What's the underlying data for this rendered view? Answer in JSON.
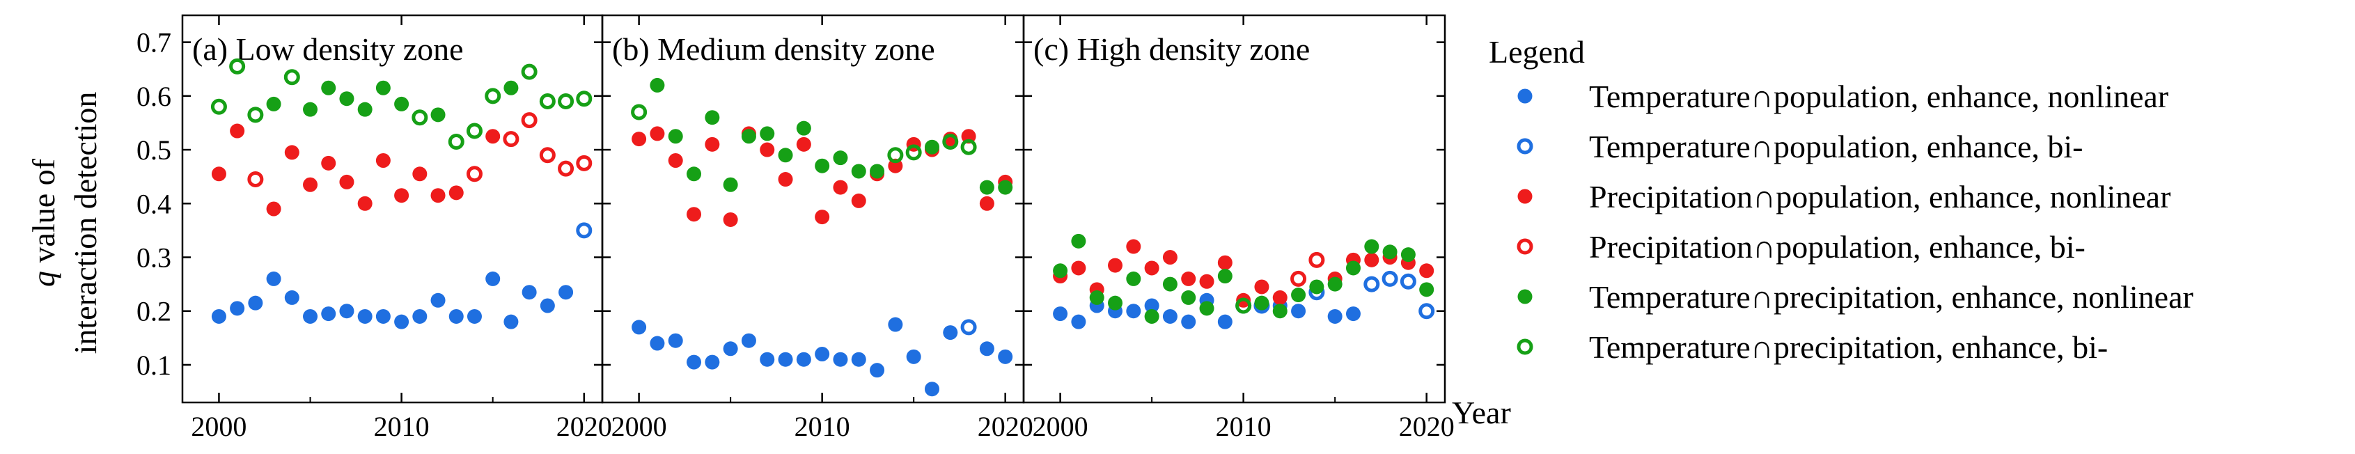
{
  "colors": {
    "blue": "#1f6fe0",
    "red": "#ee1c1c",
    "green": "#16a016",
    "axis": "#000000"
  },
  "y_axis_title_line1": "q value of",
  "y_axis_title_line1_italic": "q",
  "y_axis_title_line1_rest": " value of",
  "y_axis_title_line2": "interaction detection",
  "x_axis_title": "Year",
  "legend": {
    "title": "Legend",
    "entries": [
      {
        "label": "Temperature∩population, enhance, nonlinear",
        "color": "blue",
        "marker": "filled"
      },
      {
        "label": "Temperature∩population, enhance, bi-",
        "color": "blue",
        "marker": "open"
      },
      {
        "label": "Precipitation∩population, enhance, nonlinear",
        "color": "red",
        "marker": "filled"
      },
      {
        "label": "Precipitation∩population, enhance, bi-",
        "color": "red",
        "marker": "open"
      },
      {
        "label": "Temperature∩precipitation, enhance, nonlinear",
        "color": "green",
        "marker": "filled"
      },
      {
        "label": "Temperature∩precipitation, enhance, bi-",
        "color": "green",
        "marker": "open"
      }
    ]
  },
  "chart_data": [
    {
      "type": "scatter",
      "title": "(a) Low density zone",
      "xlabel": "Year",
      "ylabel": "q value of interaction detection",
      "xlim": [
        1998,
        2021
      ],
      "ylim": [
        0.03,
        0.75
      ],
      "xticks": [
        2000,
        2010,
        2020
      ],
      "yticks": [
        0.1,
        0.2,
        0.3,
        0.4,
        0.5,
        0.6,
        0.7
      ],
      "x": [
        2000,
        2001,
        2002,
        2003,
        2004,
        2005,
        2006,
        2007,
        2008,
        2009,
        2010,
        2011,
        2012,
        2013,
        2014,
        2015,
        2016,
        2017,
        2018,
        2019,
        2020
      ],
      "series": [
        {
          "name": "Temperature∩population",
          "color": "blue",
          "values": [
            0.19,
            0.205,
            0.215,
            0.26,
            0.225,
            0.19,
            0.195,
            0.2,
            0.19,
            0.19,
            0.18,
            0.19,
            0.22,
            0.19,
            0.19,
            0.26,
            0.18,
            0.235,
            0.21,
            0.235,
            0.35
          ],
          "open": [
            false,
            false,
            false,
            false,
            false,
            false,
            false,
            false,
            false,
            false,
            false,
            false,
            false,
            false,
            false,
            false,
            false,
            false,
            false,
            false,
            true
          ]
        },
        {
          "name": "Precipitation∩population",
          "color": "red",
          "values": [
            0.455,
            0.535,
            0.445,
            0.39,
            0.495,
            0.435,
            0.475,
            0.44,
            0.4,
            0.48,
            0.415,
            0.455,
            0.415,
            0.42,
            0.455,
            0.525,
            0.52,
            0.555,
            0.49,
            0.465,
            0.475
          ],
          "open": [
            false,
            false,
            true,
            false,
            false,
            false,
            false,
            false,
            false,
            false,
            false,
            false,
            false,
            false,
            true,
            false,
            true,
            true,
            true,
            true,
            true
          ]
        },
        {
          "name": "Temperature∩precipitation",
          "color": "green",
          "values": [
            0.58,
            0.655,
            0.565,
            0.585,
            0.635,
            0.575,
            0.615,
            0.595,
            0.575,
            0.615,
            0.585,
            0.56,
            0.565,
            0.515,
            0.535,
            0.6,
            0.615,
            0.645,
            0.59,
            0.59,
            0.595
          ],
          "open": [
            true,
            true,
            true,
            false,
            true,
            false,
            false,
            false,
            false,
            false,
            false,
            true,
            false,
            true,
            true,
            true,
            false,
            true,
            true,
            true,
            true
          ]
        }
      ]
    },
    {
      "type": "scatter",
      "title": "(b) Medium density zone",
      "xlabel": "Year",
      "ylabel": "",
      "xlim": [
        1998,
        2021
      ],
      "ylim": [
        0.03,
        0.75
      ],
      "xticks": [
        2000,
        2010,
        2020
      ],
      "yticks": [
        0.1,
        0.2,
        0.3,
        0.4,
        0.5,
        0.6,
        0.7
      ],
      "x": [
        2000,
        2001,
        2002,
        2003,
        2004,
        2005,
        2006,
        2007,
        2008,
        2009,
        2010,
        2011,
        2012,
        2013,
        2014,
        2015,
        2016,
        2017,
        2018,
        2019,
        2020
      ],
      "series": [
        {
          "name": "Temperature∩population",
          "color": "blue",
          "values": [
            0.17,
            0.14,
            0.145,
            0.105,
            0.105,
            0.13,
            0.145,
            0.11,
            0.11,
            0.11,
            0.12,
            0.11,
            0.11,
            0.09,
            0.175,
            0.115,
            0.055,
            0.16,
            0.17,
            0.13,
            0.115
          ],
          "open": [
            false,
            false,
            false,
            false,
            false,
            false,
            false,
            false,
            false,
            false,
            false,
            false,
            false,
            false,
            false,
            false,
            false,
            false,
            true,
            false,
            false
          ]
        },
        {
          "name": "Precipitation∩population",
          "color": "red",
          "values": [
            0.52,
            0.53,
            0.48,
            0.38,
            0.51,
            0.37,
            0.53,
            0.5,
            0.445,
            0.51,
            0.375,
            0.43,
            0.405,
            0.455,
            0.47,
            0.51,
            0.5,
            0.52,
            0.525,
            0.4,
            0.44
          ],
          "open": [
            false,
            false,
            false,
            false,
            false,
            false,
            false,
            false,
            false,
            false,
            false,
            false,
            false,
            false,
            false,
            false,
            false,
            false,
            false,
            false,
            false
          ]
        },
        {
          "name": "Temperature∩precipitation",
          "color": "green",
          "values": [
            0.57,
            0.62,
            0.525,
            0.455,
            0.56,
            0.435,
            0.525,
            0.53,
            0.49,
            0.54,
            0.47,
            0.485,
            0.46,
            0.46,
            0.49,
            0.495,
            0.505,
            0.515,
            0.505,
            0.43,
            0.43
          ],
          "open": [
            true,
            false,
            false,
            false,
            false,
            false,
            false,
            false,
            false,
            false,
            false,
            false,
            false,
            false,
            true,
            true,
            false,
            true,
            true,
            false,
            false
          ]
        }
      ]
    },
    {
      "type": "scatter",
      "title": "(c) High density zone",
      "xlabel": "Year",
      "ylabel": "",
      "xlim": [
        1998,
        2021
      ],
      "ylim": [
        0.03,
        0.75
      ],
      "xticks": [
        2000,
        2010,
        2020
      ],
      "yticks": [
        0.1,
        0.2,
        0.3,
        0.4,
        0.5,
        0.6,
        0.7
      ],
      "x": [
        2000,
        2001,
        2002,
        2003,
        2004,
        2005,
        2006,
        2007,
        2008,
        2009,
        2010,
        2011,
        2012,
        2013,
        2014,
        2015,
        2016,
        2017,
        2018,
        2019,
        2020
      ],
      "series": [
        {
          "name": "Temperature∩population",
          "color": "blue",
          "values": [
            0.195,
            0.18,
            0.21,
            0.2,
            0.2,
            0.21,
            0.19,
            0.18,
            0.22,
            0.18,
            0.21,
            0.21,
            0.21,
            0.2,
            0.235,
            0.19,
            0.195,
            0.25,
            0.26,
            0.255,
            0.2
          ],
          "open": [
            false,
            false,
            false,
            false,
            false,
            false,
            false,
            false,
            false,
            false,
            true,
            true,
            false,
            false,
            true,
            false,
            false,
            true,
            true,
            true,
            true
          ]
        },
        {
          "name": "Precipitation∩population",
          "color": "red",
          "values": [
            0.265,
            0.28,
            0.24,
            0.285,
            0.32,
            0.28,
            0.3,
            0.26,
            0.255,
            0.29,
            0.22,
            0.245,
            0.225,
            0.26,
            0.295,
            0.26,
            0.295,
            0.295,
            0.3,
            0.29,
            0.275
          ],
          "open": [
            false,
            false,
            false,
            false,
            false,
            false,
            false,
            false,
            false,
            false,
            false,
            false,
            false,
            true,
            true,
            false,
            false,
            false,
            false,
            false,
            false
          ]
        },
        {
          "name": "Temperature∩precipitation",
          "color": "green",
          "values": [
            0.275,
            0.33,
            0.225,
            0.215,
            0.26,
            0.19,
            0.25,
            0.225,
            0.205,
            0.265,
            0.21,
            0.215,
            0.2,
            0.23,
            0.245,
            0.25,
            0.28,
            0.32,
            0.31,
            0.305,
            0.24
          ],
          "open": [
            false,
            false,
            false,
            false,
            false,
            false,
            false,
            false,
            false,
            false,
            true,
            false,
            false,
            false,
            false,
            false,
            false,
            false,
            false,
            false,
            false
          ]
        }
      ]
    }
  ]
}
